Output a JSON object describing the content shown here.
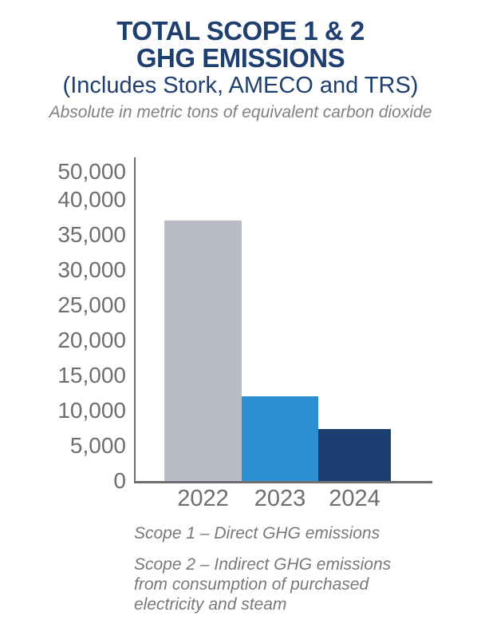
{
  "header": {
    "title_line1": "TOTAL SCOPE 1 & 2",
    "title_line2": "GHG EMISSIONS",
    "subtitle": "(Includes Stork, AMECO and TRS)",
    "unit_note": "Absolute in metric tons of equivalent carbon dioxide"
  },
  "chart_data": {
    "type": "bar",
    "title": "TOTAL SCOPE 1 & 2 GHG EMISSIONS",
    "subtitle": "(Includes Stork, AMECO and TRS)",
    "units": "Absolute in metric tons of equivalent carbon dioxide",
    "categories": [
      "2022",
      "2023",
      "2024"
    ],
    "values": [
      37000,
      12000,
      7400
    ],
    "bar_colors": [
      "#b9bcc6",
      "#2b90cf",
      "#1b3f70"
    ],
    "y_ticks": [
      "0",
      "5,000",
      "10,000",
      "15,000",
      "20,000",
      "25,000",
      "30,000",
      "35,000",
      "40,000",
      "50,000"
    ],
    "ylim": [
      0,
      50000
    ],
    "grid": false,
    "legend": "none",
    "axis_color": "#6d6e71"
  },
  "footnotes": {
    "scope1": "Scope 1 – Direct GHG emissions",
    "scope2": "Scope 2 – Indirect GHG emissions from consumption of purchased electricity and steam"
  },
  "colors": {
    "title_navy": "#1e3f6f",
    "tick_gray": "#6d6e71",
    "note_gray": "#77787b"
  }
}
